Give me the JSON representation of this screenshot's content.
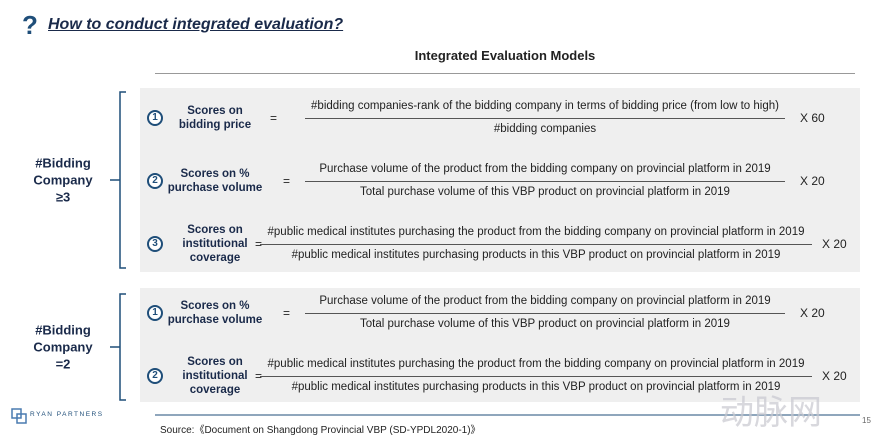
{
  "header": {
    "icon": "?",
    "title": "How to conduct integrated evaluation?"
  },
  "subtitle": "Integrated Evaluation Models",
  "groups": [
    {
      "label": "#Bidding\nCompany\n≥3",
      "rows": [
        {
          "number": "1",
          "name": "Scores on\nbidding price",
          "equals": "=",
          "numerator": "#bidding companies-rank of the bidding company in terms of bidding price (from low to high)",
          "denominator": "#bidding companies",
          "multiplier": "X 60"
        },
        {
          "number": "2",
          "name": "Scores on %\npurchase volume",
          "equals": "=",
          "numerator": "Purchase volume of the product from the bidding company on provincial platform in 2019",
          "denominator": "Total purchase volume of this VBP product on provincial platform in 2019",
          "multiplier": "X 20"
        },
        {
          "number": "3",
          "name": "Scores on\ninstitutional\ncoverage",
          "equals": "=",
          "numerator": "#public medical institutes purchasing the product from the bidding company on provincial platform in 2019",
          "denominator": "#public medical institutes purchasing products in this VBP product on provincial platform in 2019",
          "multiplier": "X 20"
        }
      ]
    },
    {
      "label": "#Bidding\nCompany\n=2",
      "rows": [
        {
          "number": "1",
          "name": "Scores on %\npurchase volume",
          "equals": "=",
          "numerator": "Purchase volume of the product from the bidding company on provincial platform in 2019",
          "denominator": "Total purchase volume of this VBP product on provincial platform in 2019",
          "multiplier": "X 20"
        },
        {
          "number": "2",
          "name": "Scores on\ninstitutional\ncoverage",
          "equals": "=",
          "numerator": "#public medical institutes purchasing the product from the bidding company on provincial platform in 2019",
          "denominator": "#public medical institutes purchasing products in this VBP product on provincial platform in 2019",
          "multiplier": "X 20"
        }
      ]
    }
  ],
  "footer": {
    "logo": "RYAN PARTNERS",
    "source": "Source:《Document on Shangdong Provincial VBP (SD-YPDL2020-1)》",
    "page": "15",
    "watermark": "动脉网"
  }
}
